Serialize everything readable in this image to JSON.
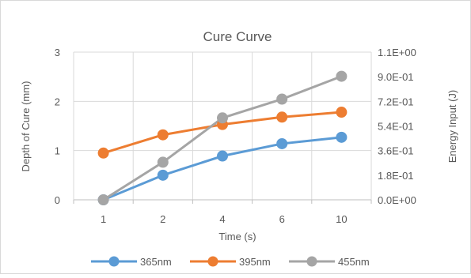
{
  "chart_data": {
    "type": "line",
    "title": "Cure Curve",
    "categories": [
      "1",
      "2",
      "4",
      "6",
      "10"
    ],
    "xlabel": "Time (s)",
    "ylabel": "Depth of Cure (mm)",
    "y2label": "Energy Input (J)",
    "ylim": [
      0,
      3
    ],
    "yticks": [
      "0",
      "1",
      "2",
      "3"
    ],
    "y2lim": [
      0,
      1.1
    ],
    "y2ticks": [
      "0.0E+00",
      "1.8E-01",
      "3.6E-01",
      "5.4E-01",
      "7.2E-01",
      "9.0E-01",
      "1.1E+00"
    ],
    "grid": true,
    "legend_position": "bottom",
    "series": [
      {
        "name": "365nm",
        "axis": "left",
        "color": "#5b9bd5",
        "values": [
          0.0,
          0.5,
          0.89,
          1.14,
          1.27
        ]
      },
      {
        "name": "395nm",
        "axis": "left",
        "color": "#ed7d31",
        "values": [
          0.95,
          1.32,
          1.53,
          1.68,
          1.78
        ]
      },
      {
        "name": "455nm",
        "axis": "right",
        "color": "#a5a5a5",
        "values": [
          0.0,
          0.28,
          0.61,
          0.75,
          0.92
        ]
      }
    ]
  }
}
